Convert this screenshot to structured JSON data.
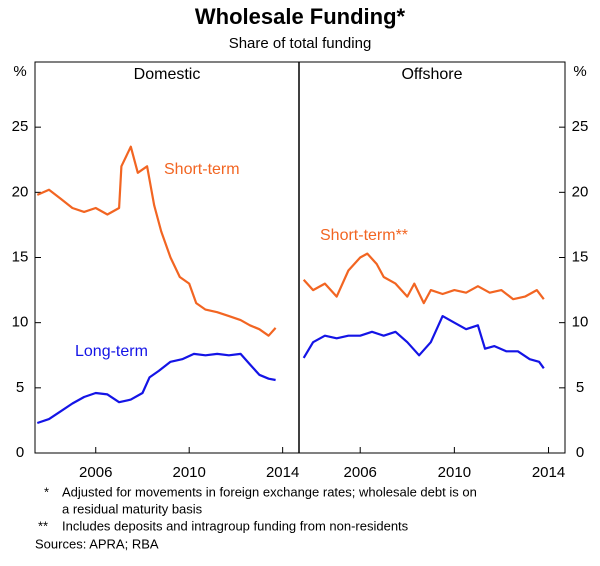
{
  "title": "Wholesale Funding*",
  "subtitle": "Share of total funding",
  "footnotes": [
    {
      "mark": "*",
      "text": [
        "Adjusted for movements in foreign exchange rates; wholesale debt is on",
        "a residual maturity basis"
      ]
    },
    {
      "mark": "**",
      "text": [
        "Includes deposits and intragroup funding from non-residents"
      ]
    }
  ],
  "sources": "Sources: APRA; RBA",
  "chart_data": [
    {
      "type": "line",
      "title": "Domestic",
      "ylabel": "%",
      "xlim": [
        2003.4,
        2014.7
      ],
      "ylim": [
        0,
        30
      ],
      "xticks": [
        2006,
        2010,
        2014
      ],
      "yticks": [
        0,
        5,
        10,
        15,
        20,
        25
      ],
      "series": [
        {
          "name": "Short-term",
          "color": "#f26522",
          "x": [
            2003.5,
            2004,
            2004.5,
            2005,
            2005.5,
            2006,
            2006.5,
            2007,
            2007.1,
            2007.5,
            2007.8,
            2008.2,
            2008.5,
            2008.8,
            2009.2,
            2009.6,
            2010,
            2010.3,
            2010.7,
            2011.2,
            2011.7,
            2012.2,
            2012.6,
            2013,
            2013.4,
            2013.7
          ],
          "values": [
            19.8,
            20.2,
            19.5,
            18.8,
            18.5,
            18.8,
            18.3,
            18.8,
            22,
            23.5,
            21.5,
            22,
            19,
            17,
            15,
            13.5,
            13,
            11.5,
            11,
            10.8,
            10.5,
            10.2,
            9.8,
            9.5,
            9,
            9.6
          ]
        },
        {
          "name": "Long-term",
          "color": "#1414e6",
          "x": [
            2003.5,
            2004,
            2004.5,
            2005,
            2005.5,
            2006,
            2006.5,
            2007,
            2007.5,
            2008,
            2008.3,
            2008.7,
            2009.2,
            2009.7,
            2010.2,
            2010.7,
            2011.2,
            2011.7,
            2012.2,
            2012.6,
            2013,
            2013.4,
            2013.7
          ],
          "values": [
            2.3,
            2.6,
            3.2,
            3.8,
            4.3,
            4.6,
            4.5,
            3.9,
            4.1,
            4.6,
            5.8,
            6.3,
            7,
            7.2,
            7.6,
            7.5,
            7.6,
            7.5,
            7.6,
            6.8,
            6,
            5.7,
            5.6
          ]
        }
      ]
    },
    {
      "type": "line",
      "title": "Offshore",
      "ylabel": "%",
      "xlim": [
        2003.4,
        2014.7
      ],
      "ylim": [
        0,
        30
      ],
      "xticks": [
        2006,
        2010,
        2014
      ],
      "yticks": [
        0,
        5,
        10,
        15,
        20,
        25
      ],
      "series": [
        {
          "name": "Short-term**",
          "color": "#f26522",
          "x": [
            2003.6,
            2004,
            2004.5,
            2005,
            2005.5,
            2006,
            2006.3,
            2006.7,
            2007,
            2007.5,
            2008,
            2008.3,
            2008.7,
            2009,
            2009.5,
            2010,
            2010.5,
            2011,
            2011.5,
            2012,
            2012.5,
            2013,
            2013.5,
            2013.8
          ],
          "values": [
            13.3,
            12.5,
            13,
            12,
            14,
            15,
            15.3,
            14.5,
            13.5,
            13,
            12,
            13,
            11.5,
            12.5,
            12.2,
            12.5,
            12.3,
            12.8,
            12.3,
            12.5,
            11.8,
            12,
            12.5,
            11.8
          ]
        },
        {
          "name": "Long-term",
          "color": "#1414e6",
          "x": [
            2003.6,
            2004,
            2004.5,
            2005,
            2005.5,
            2006,
            2006.5,
            2007,
            2007.5,
            2008,
            2008.5,
            2009,
            2009.5,
            2010,
            2010.5,
            2011,
            2011.3,
            2011.7,
            2012.2,
            2012.7,
            2013.2,
            2013.6,
            2013.8
          ],
          "values": [
            7.3,
            8.5,
            9,
            8.8,
            9,
            9,
            9.3,
            9,
            9.3,
            8.5,
            7.5,
            8.5,
            10.5,
            10,
            9.5,
            9.8,
            8,
            8.2,
            7.8,
            7.8,
            7.2,
            7,
            6.5
          ]
        }
      ]
    }
  ]
}
